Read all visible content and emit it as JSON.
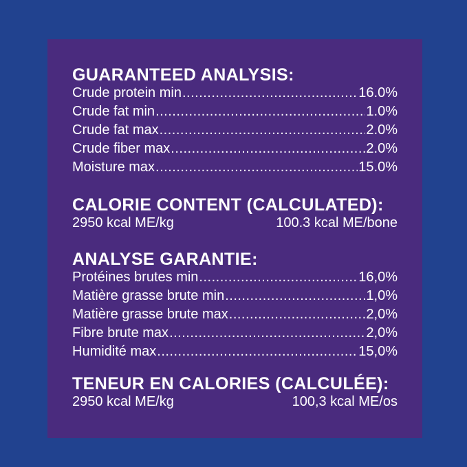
{
  "colors": {
    "background": "#21428f",
    "panel": "#4a2b7e",
    "text": "#ffffff"
  },
  "sections": [
    {
      "id": "guaranteed-analysis",
      "title": "GUARANTEED ANALYSIS:",
      "rows": [
        {
          "label": "Crude protein min",
          "value": "16.0%"
        },
        {
          "label": "Crude fat min",
          "value": "1.0%"
        },
        {
          "label": "Crude fat max",
          "value": "2.0%"
        },
        {
          "label": "Crude fiber max",
          "value": "2.0%"
        },
        {
          "label": "Moisture max",
          "value": "15.0%"
        }
      ]
    },
    {
      "id": "calorie-content",
      "title": "CALORIE CONTENT (CALCULATED):",
      "left_value": "2950 kcal ME/kg",
      "right_value": "100.3 kcal ME/bone"
    },
    {
      "id": "analyse-garantie",
      "title": "ANALYSE GARANTIE:",
      "rows": [
        {
          "label": "Protéines brutes min",
          "value": "16,0%"
        },
        {
          "label": "Matière grasse brute min",
          "value": "1,0%"
        },
        {
          "label": "Matière grasse brute max",
          "value": "2,0%"
        },
        {
          "label": "Fibre brute max",
          "value": "2,0%"
        },
        {
          "label": "Humidité max",
          "value": "15,0%"
        }
      ]
    },
    {
      "id": "teneur-en-calories",
      "title": "TENEUR EN CALORIES (CALCULÉE):",
      "left_value": "2950 kcal ME/kg",
      "right_value": "100,3 kcal ME/os"
    }
  ]
}
